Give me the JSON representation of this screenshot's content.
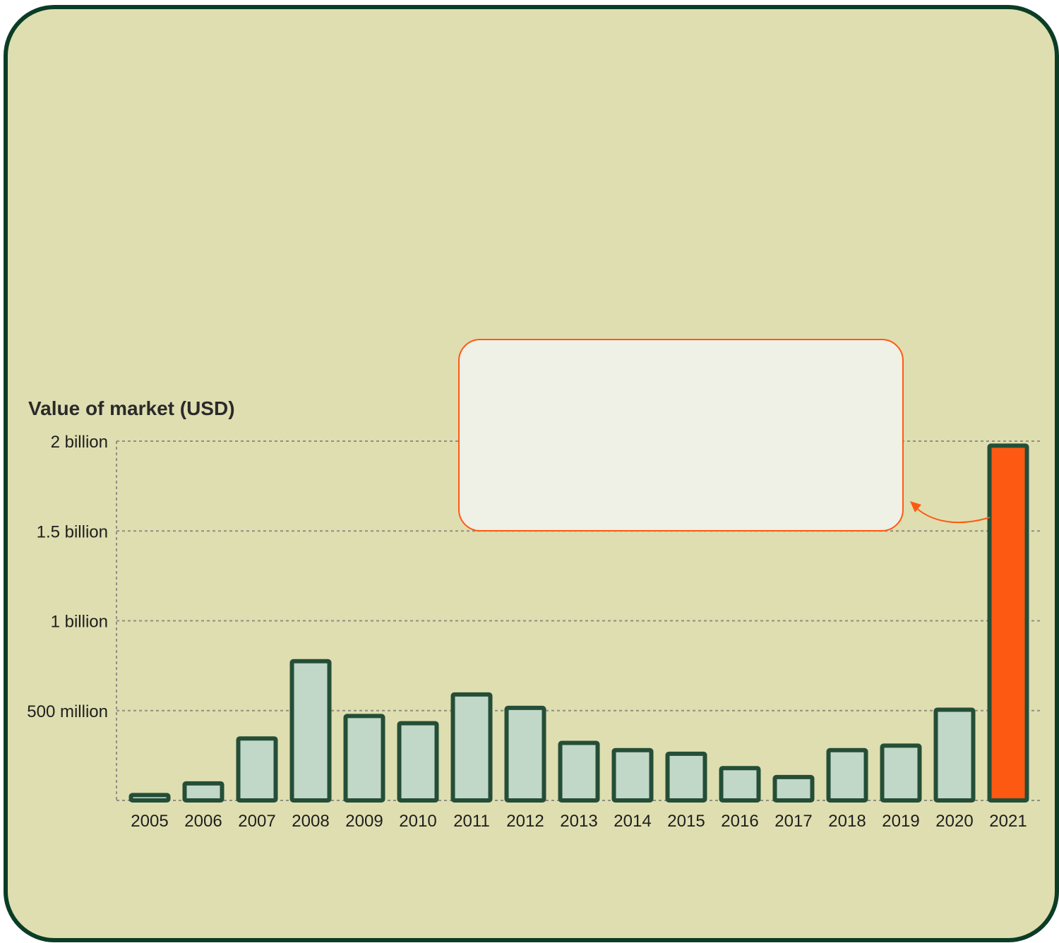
{
  "chart_data": {
    "type": "bar",
    "ylabel": "Value of market (USD)",
    "ylim": [
      0,
      2000000000
    ],
    "y_ticks": [
      {
        "value": 500000000,
        "label": "500 million"
      },
      {
        "value": 1000000000,
        "label": "1 billion"
      },
      {
        "value": 1500000000,
        "label": "1.5 billion"
      },
      {
        "value": 2000000000,
        "label": "2 billion"
      }
    ],
    "categories": [
      "2005",
      "2006",
      "2007",
      "2008",
      "2009",
      "2010",
      "2011",
      "2012",
      "2013",
      "2014",
      "2015",
      "2016",
      "2017",
      "2018",
      "2019",
      "2020",
      "2021"
    ],
    "values": [
      30000000,
      95000000,
      345000000,
      775000000,
      470000000,
      430000000,
      590000000,
      515000000,
      320000000,
      280000000,
      260000000,
      180000000,
      130000000,
      280000000,
      305000000,
      505000000,
      1975000000
    ],
    "highlight_category": "2021",
    "grid": true,
    "legend": "none",
    "colors": {
      "background": "#dfdeb0",
      "frame": "#0b3d26",
      "bar_fill": "#c1d7c7",
      "bar_stroke": "#244e37",
      "highlight_fill": "#fe5912",
      "callout_fill": "#eff0e6",
      "callout_stroke": "#fe5912"
    }
  }
}
